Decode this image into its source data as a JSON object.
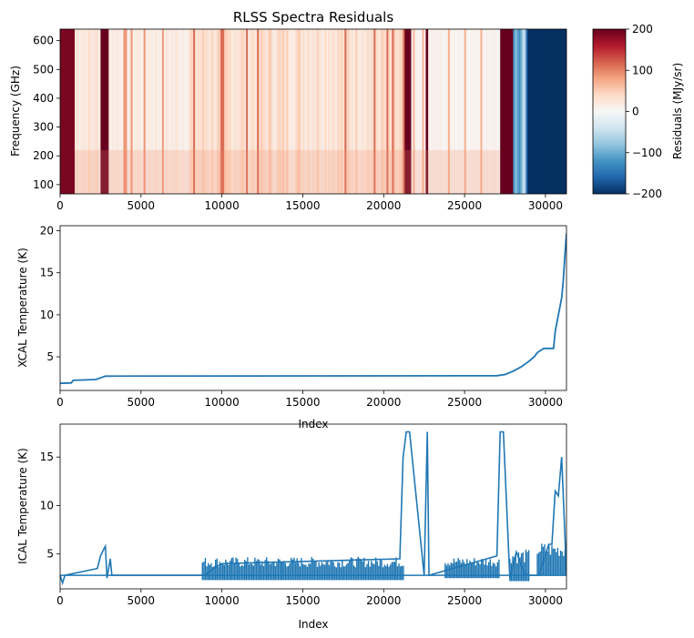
{
  "chart_data": [
    {
      "type": "heatmap",
      "title": "RLSS Spectra Residuals",
      "xlabel": "",
      "ylabel": "Frequency (GHz)",
      "xlim": [
        0,
        31300
      ],
      "ylim": [
        68,
        640
      ],
      "xticks": [
        0,
        5000,
        10000,
        15000,
        20000,
        25000,
        30000
      ],
      "yticks": [
        100,
        200,
        300,
        400,
        500,
        600
      ],
      "colormap": "RdBu_r",
      "colorbar": {
        "label": "Residuals (MJy/sr)",
        "range": [
          -200,
          200
        ],
        "ticks": [
          -200,
          -100,
          0,
          100,
          200
        ],
        "tick_labels": [
          "−200",
          "−100",
          "0",
          "100",
          "200"
        ]
      },
      "column_profile": [
        {
          "x_start": 0,
          "x_end": 900,
          "residual": 190
        },
        {
          "x_start": 900,
          "x_end": 2500,
          "residual": 25
        },
        {
          "x_start": 2500,
          "x_end": 3000,
          "residual": 200
        },
        {
          "x_start": 3000,
          "x_end": 8000,
          "residual": 18
        },
        {
          "x_start": 8000,
          "x_end": 21300,
          "residual": 35
        },
        {
          "x_start": 21300,
          "x_end": 21700,
          "residual": 200
        },
        {
          "x_start": 21700,
          "x_end": 22600,
          "residual": 5
        },
        {
          "x_start": 22600,
          "x_end": 22750,
          "residual": 200
        },
        {
          "x_start": 22750,
          "x_end": 27200,
          "residual": 8
        },
        {
          "x_start": 27200,
          "x_end": 28000,
          "residual": 200
        },
        {
          "x_start": 28000,
          "x_end": 28900,
          "residual": -120
        },
        {
          "x_start": 28900,
          "x_end": 31300,
          "residual": -200
        }
      ]
    },
    {
      "type": "line",
      "title": "",
      "xlabel": "Index",
      "ylabel": "XCAL Temperature (K)",
      "xlim": [
        0,
        31300
      ],
      "ylim": [
        1.0,
        20.6
      ],
      "xticks": [
        0,
        5000,
        10000,
        15000,
        20000,
        25000,
        30000
      ],
      "yticks": [
        5,
        10,
        15,
        20
      ],
      "series": [
        {
          "name": "XCAL",
          "color": "#1f77b4",
          "x": [
            0,
            700,
            800,
            2200,
            2800,
            27000,
            27500,
            28000,
            28500,
            29000,
            29300,
            29500,
            29900,
            30500,
            30600,
            30800,
            31000,
            31100,
            31200,
            31300
          ],
          "y": [
            1.85,
            1.9,
            2.2,
            2.3,
            2.7,
            2.75,
            2.9,
            3.3,
            3.8,
            4.5,
            5.0,
            5.5,
            6.0,
            6.0,
            8.0,
            10.0,
            12.0,
            14.0,
            17.0,
            19.7
          ]
        }
      ]
    },
    {
      "type": "line",
      "title": "",
      "xlabel": "Index",
      "ylabel": "ICAL Temperature (K)",
      "xlim": [
        0,
        31300
      ],
      "ylim": [
        1.4,
        18.4
      ],
      "xticks": [
        0,
        5000,
        10000,
        15000,
        20000,
        25000,
        30000
      ],
      "yticks": [
        5,
        10,
        15
      ],
      "series": [
        {
          "name": "ICAL",
          "color": "#1f77b4",
          "x": [
            0,
            150,
            300,
            2300,
            2500,
            2700,
            2800,
            2900,
            3100,
            3200,
            8900,
            9500,
            10000,
            21000,
            21200,
            21400,
            21600,
            22500,
            22700,
            22800,
            27000,
            27200,
            27400,
            27800,
            28200,
            28700,
            29000,
            29600,
            30200,
            30400,
            30600,
            30800,
            31000,
            31300
          ],
          "y": [
            2.8,
            2.0,
            2.8,
            3.5,
            4.8,
            5.5,
            5.8,
            2.5,
            4.5,
            2.8,
            2.8,
            3.5,
            4.0,
            4.5,
            15.0,
            17.6,
            17.6,
            2.8,
            17.6,
            2.8,
            4.8,
            17.6,
            17.6,
            2.5,
            5.2,
            3.0,
            2.8,
            2.8,
            6.0,
            6.0,
            11.5,
            11.0,
            15.0,
            3.0
          ]
        }
      ],
      "noise_bands": [
        {
          "x_start": 8800,
          "x_end": 21300,
          "y_low": 2.3,
          "y_high": 4.7
        },
        {
          "x_start": 23800,
          "x_end": 27200,
          "y_low": 2.5,
          "y_high": 4.7
        },
        {
          "x_start": 27800,
          "x_end": 29000,
          "y_low": 2.2,
          "y_high": 5.5
        },
        {
          "x_start": 29500,
          "x_end": 31300,
          "y_low": 2.8,
          "y_high": 6.2
        }
      ]
    }
  ]
}
